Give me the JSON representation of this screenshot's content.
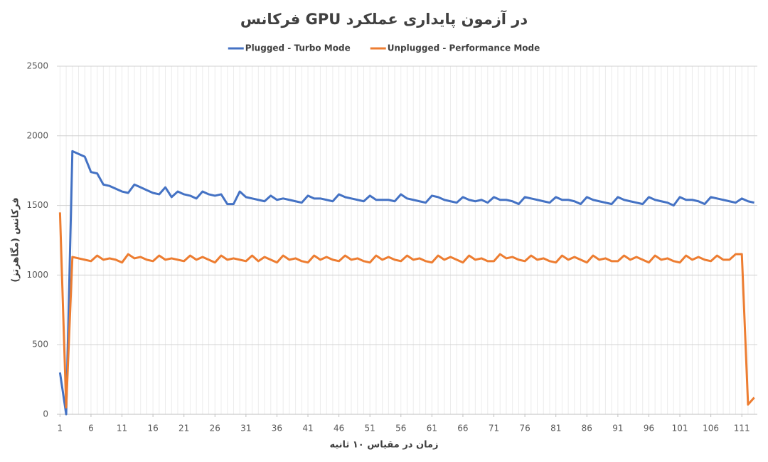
{
  "chart_data": {
    "type": "line",
    "title": "فرکانس GPU در آزمون پایداری عملکرد",
    "x_label": "زمان در مقیاس ۱۰ ثانیه",
    "y_label": "فرکانس (مگاهرتز)",
    "x": [
      1,
      2,
      3,
      4,
      5,
      6,
      7,
      8,
      9,
      10,
      11,
      12,
      13,
      14,
      15,
      16,
      17,
      18,
      19,
      20,
      21,
      22,
      23,
      24,
      25,
      26,
      27,
      28,
      29,
      30,
      31,
      32,
      33,
      34,
      35,
      36,
      37,
      38,
      39,
      40,
      41,
      42,
      43,
      44,
      45,
      46,
      47,
      48,
      49,
      50,
      51,
      52,
      53,
      54,
      55,
      56,
      57,
      58,
      59,
      60,
      61,
      62,
      63,
      64,
      65,
      66,
      67,
      68,
      69,
      70,
      71,
      72,
      73,
      74,
      75,
      76,
      77,
      78,
      79,
      80,
      81,
      82,
      83,
      84,
      85,
      86,
      87,
      88,
      89,
      90,
      91,
      92,
      93,
      94,
      95,
      96,
      97,
      98,
      99,
      100,
      101,
      102,
      103,
      104,
      105,
      106,
      107,
      108,
      109,
      110,
      111,
      112,
      113
    ],
    "xlim": [
      0.5,
      113.5
    ],
    "xticks": [
      1,
      6,
      11,
      16,
      21,
      26,
      31,
      36,
      41,
      46,
      51,
      56,
      61,
      66,
      71,
      76,
      81,
      86,
      91,
      96,
      101,
      106,
      111
    ],
    "ylim": [
      0,
      2500
    ],
    "yticks": [
      0,
      500,
      1000,
      1500,
      2000,
      2500
    ],
    "grid": true,
    "legend": "top",
    "series": [
      {
        "name": "Plugged - Turbo Mode",
        "color": "#4472c4",
        "values": [
          300,
          0,
          1890,
          1870,
          1850,
          1740,
          1730,
          1650,
          1640,
          1620,
          1600,
          1590,
          1650,
          1630,
          1610,
          1590,
          1580,
          1630,
          1560,
          1600,
          1580,
          1570,
          1550,
          1600,
          1580,
          1570,
          1580,
          1510,
          1510,
          1600,
          1560,
          1550,
          1540,
          1530,
          1570,
          1540,
          1550,
          1540,
          1530,
          1520,
          1570,
          1550,
          1550,
          1540,
          1530,
          1580,
          1560,
          1550,
          1540,
          1530,
          1570,
          1540,
          1540,
          1540,
          1530,
          1580,
          1550,
          1540,
          1530,
          1520,
          1570,
          1560,
          1540,
          1530,
          1520,
          1560,
          1540,
          1530,
          1540,
          1520,
          1560,
          1540,
          1540,
          1530,
          1510,
          1560,
          1550,
          1540,
          1530,
          1520,
          1560,
          1540,
          1540,
          1530,
          1510,
          1560,
          1540,
          1530,
          1520,
          1510,
          1560,
          1540,
          1530,
          1520,
          1510,
          1560,
          1540,
          1530,
          1520,
          1500,
          1560,
          1540,
          1540,
          1530,
          1510,
          1560,
          1550,
          1540,
          1530,
          1520,
          1550,
          1530,
          1520
        ]
      },
      {
        "name": "Unplugged - Performance Mode",
        "color": "#ed7d31",
        "values": [
          1450,
          50,
          1130,
          1120,
          1110,
          1100,
          1140,
          1110,
          1120,
          1110,
          1090,
          1150,
          1120,
          1130,
          1110,
          1100,
          1140,
          1110,
          1120,
          1110,
          1100,
          1140,
          1110,
          1130,
          1110,
          1090,
          1140,
          1110,
          1120,
          1110,
          1100,
          1140,
          1100,
          1130,
          1110,
          1090,
          1140,
          1110,
          1120,
          1100,
          1090,
          1140,
          1110,
          1130,
          1110,
          1100,
          1140,
          1110,
          1120,
          1100,
          1090,
          1140,
          1110,
          1130,
          1110,
          1100,
          1140,
          1110,
          1120,
          1100,
          1090,
          1140,
          1110,
          1130,
          1110,
          1090,
          1140,
          1110,
          1120,
          1100,
          1100,
          1150,
          1120,
          1130,
          1110,
          1100,
          1140,
          1110,
          1120,
          1100,
          1090,
          1140,
          1110,
          1130,
          1110,
          1090,
          1140,
          1110,
          1120,
          1100,
          1100,
          1140,
          1110,
          1130,
          1110,
          1090,
          1140,
          1110,
          1120,
          1100,
          1090,
          1140,
          1110,
          1130,
          1110,
          1100,
          1140,
          1110,
          1110,
          1150,
          1150,
          70,
          120
        ]
      }
    ]
  }
}
